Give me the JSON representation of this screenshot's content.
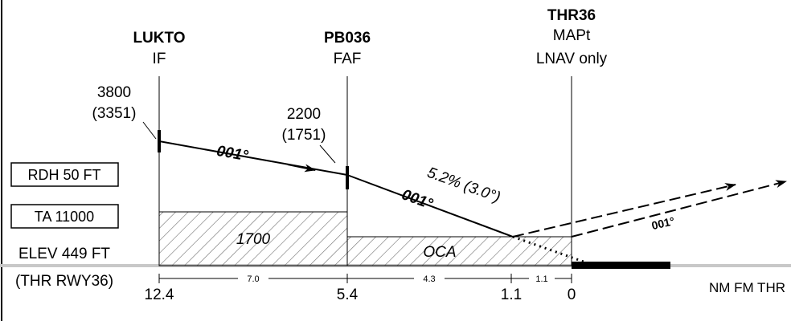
{
  "fixes": [
    {
      "name": "LUKTO",
      "role": "IF",
      "alt": "3800",
      "alt_hat": "(3351)",
      "dist": "12.4"
    },
    {
      "name": "PB036",
      "role": "FAF",
      "alt": "2200",
      "alt_hat": "(1751)",
      "dist": "5.4"
    },
    {
      "name": "THR36",
      "role": "MAPt",
      "note": "LNAV only",
      "dist": "0"
    }
  ],
  "step_fix": {
    "dist": "1.1"
  },
  "segments": [
    "7.0",
    "4.3",
    "1.1"
  ],
  "track_labels": [
    "001°",
    "001°",
    "001°"
  ],
  "glidepath": "5.2% (3.0°)",
  "areas": {
    "intermediate_alt": "1700",
    "final_label": "OCA"
  },
  "info_boxes": {
    "rdh": "RDH 50 FT",
    "ta": "TA 11000"
  },
  "elevation": {
    "line1": "ELEV 449 FT",
    "line2": "(THR RWY36)"
  },
  "distance_unit": "NM FM THR",
  "colors": {
    "ink": "#000000",
    "ground": "#c8c8c8",
    "hatch": "#6e6e6e"
  }
}
